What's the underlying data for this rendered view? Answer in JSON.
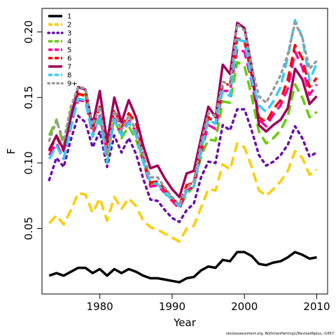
{
  "chart_data": {
    "type": "line",
    "xlabel": "Year",
    "ylabel": "F",
    "xlim": [
      1972,
      2011.5
    ],
    "ylim": [
      0.0,
      0.218
    ],
    "x_ticks": [
      1980,
      1990,
      2000,
      2010
    ],
    "y_ticks": [
      0.05,
      0.1,
      0.15,
      0.2
    ],
    "y_tick_labels": [
      "0.05",
      "0.10",
      "0.15",
      "0.20"
    ],
    "legend_position": "top-left",
    "credit": "stockassessment.org, BothnianHerring12Revised9plus, r1657",
    "x": [
      1973,
      1974,
      1975,
      1976,
      1977,
      1978,
      1979,
      1980,
      1981,
      1982,
      1983,
      1984,
      1985,
      1986,
      1987,
      1988,
      1989,
      1990,
      1991,
      1992,
      1993,
      1994,
      1995,
      1996,
      1997,
      1998,
      1999,
      2000,
      2001,
      2002,
      2003,
      2004,
      2005,
      2006,
      2007,
      2008,
      2009,
      2010
    ],
    "series": [
      {
        "name": "1",
        "color": "#000000",
        "dash": "solid",
        "values": [
          0.014,
          0.016,
          0.014,
          0.017,
          0.02,
          0.02,
          0.016,
          0.019,
          0.014,
          0.019,
          0.016,
          0.019,
          0.017,
          0.014,
          0.012,
          0.012,
          0.011,
          0.01,
          0.009,
          0.012,
          0.013,
          0.018,
          0.021,
          0.02,
          0.026,
          0.025,
          0.032,
          0.032,
          0.029,
          0.023,
          0.022,
          0.024,
          0.025,
          0.028,
          0.032,
          0.03,
          0.027,
          0.028
        ]
      },
      {
        "name": "2",
        "color": "#ffcc00",
        "dash": "dashed",
        "values": [
          0.054,
          0.06,
          0.053,
          0.064,
          0.077,
          0.076,
          0.062,
          0.073,
          0.056,
          0.074,
          0.065,
          0.073,
          0.067,
          0.056,
          0.051,
          0.049,
          0.046,
          0.043,
          0.04,
          0.05,
          0.052,
          0.066,
          0.08,
          0.079,
          0.099,
          0.095,
          0.115,
          0.112,
          0.097,
          0.079,
          0.075,
          0.08,
          0.086,
          0.094,
          0.109,
          0.104,
          0.091,
          0.095
        ]
      },
      {
        "name": "3",
        "color": "#6a0dad",
        "dash": "dotted",
        "values": [
          0.087,
          0.104,
          0.097,
          0.118,
          0.136,
          0.131,
          0.112,
          0.124,
          0.097,
          0.121,
          0.108,
          0.119,
          0.107,
          0.088,
          0.072,
          0.071,
          0.064,
          0.058,
          0.055,
          0.064,
          0.069,
          0.089,
          0.101,
          0.1,
          0.129,
          0.125,
          0.141,
          0.141,
          0.125,
          0.106,
          0.098,
          0.101,
          0.106,
          0.114,
          0.128,
          0.119,
          0.105,
          0.108
        ]
      },
      {
        "name": "4",
        "color": "#66cc00",
        "dash": "dashed",
        "values": [
          0.121,
          0.133,
          0.113,
          0.14,
          0.153,
          0.152,
          0.126,
          0.132,
          0.104,
          0.134,
          0.119,
          0.128,
          0.118,
          0.101,
          0.084,
          0.083,
          0.077,
          0.071,
          0.066,
          0.076,
          0.082,
          0.105,
          0.118,
          0.117,
          0.147,
          0.146,
          0.177,
          0.174,
          0.151,
          0.124,
          0.115,
          0.119,
          0.125,
          0.136,
          0.16,
          0.15,
          0.135,
          0.139
        ]
      },
      {
        "name": "5",
        "color": "#ff0099",
        "dash": "dashed",
        "values": [
          0.106,
          0.115,
          0.103,
          0.129,
          0.148,
          0.147,
          0.122,
          0.136,
          0.108,
          0.134,
          0.122,
          0.132,
          0.124,
          0.101,
          0.082,
          0.083,
          0.077,
          0.071,
          0.065,
          0.079,
          0.082,
          0.108,
          0.129,
          0.126,
          0.155,
          0.155,
          0.187,
          0.185,
          0.162,
          0.133,
          0.128,
          0.137,
          0.144,
          0.157,
          0.185,
          0.173,
          0.152,
          0.16
        ]
      },
      {
        "name": "6",
        "color": "#ff0000",
        "dash": "dashed",
        "values": [
          0.109,
          0.12,
          0.109,
          0.135,
          0.153,
          0.151,
          0.127,
          0.143,
          0.113,
          0.141,
          0.127,
          0.138,
          0.131,
          0.105,
          0.085,
          0.086,
          0.08,
          0.073,
          0.068,
          0.083,
          0.085,
          0.113,
          0.135,
          0.13,
          0.16,
          0.16,
          0.195,
          0.193,
          0.167,
          0.135,
          0.131,
          0.141,
          0.148,
          0.164,
          0.19,
          0.18,
          0.158,
          0.165
        ]
      },
      {
        "name": "7",
        "color": "#a0005a",
        "dash": "solid",
        "values": [
          0.11,
          0.121,
          0.11,
          0.135,
          0.158,
          0.156,
          0.129,
          0.155,
          0.116,
          0.15,
          0.131,
          0.148,
          0.135,
          0.113,
          0.096,
          0.098,
          0.088,
          0.08,
          0.074,
          0.092,
          0.094,
          0.119,
          0.143,
          0.135,
          0.175,
          0.168,
          0.207,
          0.203,
          0.174,
          0.129,
          0.124,
          0.129,
          0.133,
          0.142,
          0.172,
          0.164,
          0.145,
          0.151
        ]
      },
      {
        "name": "8",
        "color": "#33ccff",
        "dash": "dashed",
        "values": [
          0.103,
          0.113,
          0.103,
          0.127,
          0.149,
          0.148,
          0.12,
          0.137,
          0.1,
          0.133,
          0.121,
          0.131,
          0.121,
          0.101,
          0.085,
          0.084,
          0.077,
          0.072,
          0.067,
          0.078,
          0.082,
          0.109,
          0.133,
          0.13,
          0.155,
          0.151,
          0.194,
          0.193,
          0.163,
          0.144,
          0.139,
          0.147,
          0.158,
          0.181,
          0.209,
          0.196,
          0.163,
          0.176
        ]
      },
      {
        "name": "9+",
        "color": "#999999",
        "dash": "dotted",
        "values": [
          0.117,
          0.132,
          0.117,
          0.143,
          0.158,
          0.157,
          0.129,
          0.143,
          0.106,
          0.14,
          0.125,
          0.136,
          0.125,
          0.106,
          0.089,
          0.089,
          0.081,
          0.074,
          0.068,
          0.081,
          0.086,
          0.115,
          0.138,
          0.136,
          0.162,
          0.16,
          0.206,
          0.201,
          0.174,
          0.151,
          0.146,
          0.156,
          0.167,
          0.183,
          0.207,
          0.196,
          0.172,
          0.178
        ]
      }
    ]
  }
}
